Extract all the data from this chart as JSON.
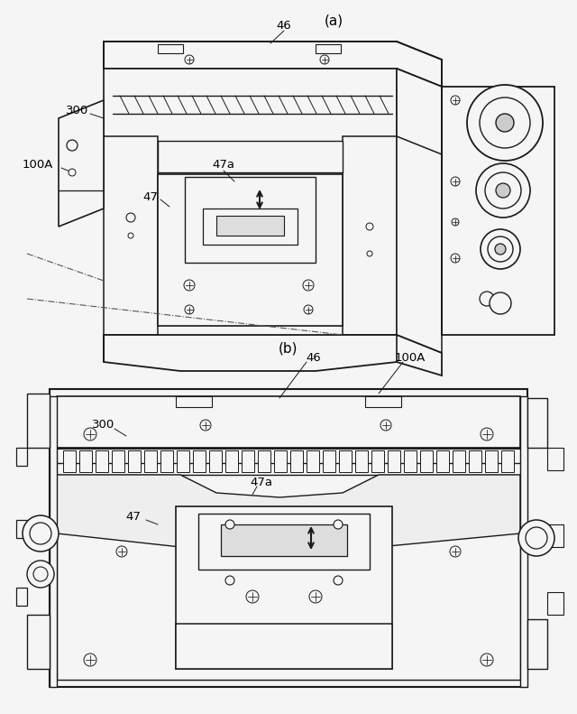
{
  "bg_color": "#f5f5f5",
  "fig_width": 6.4,
  "fig_height": 7.91,
  "label_a": "(a)",
  "label_b": "(b)",
  "text_color": "#000000",
  "line_color": "#1a1a1a",
  "font_size_label": 11,
  "font_size_ref": 9.5,
  "labels": {
    "46_a": "46",
    "300_a": "300",
    "100A_a": "100A",
    "47a_a": "47a",
    "47_a": "47",
    "46_b": "46",
    "100A_b": "100A",
    "300_b": "300",
    "47a_b": "47a",
    "47_b": "47"
  }
}
